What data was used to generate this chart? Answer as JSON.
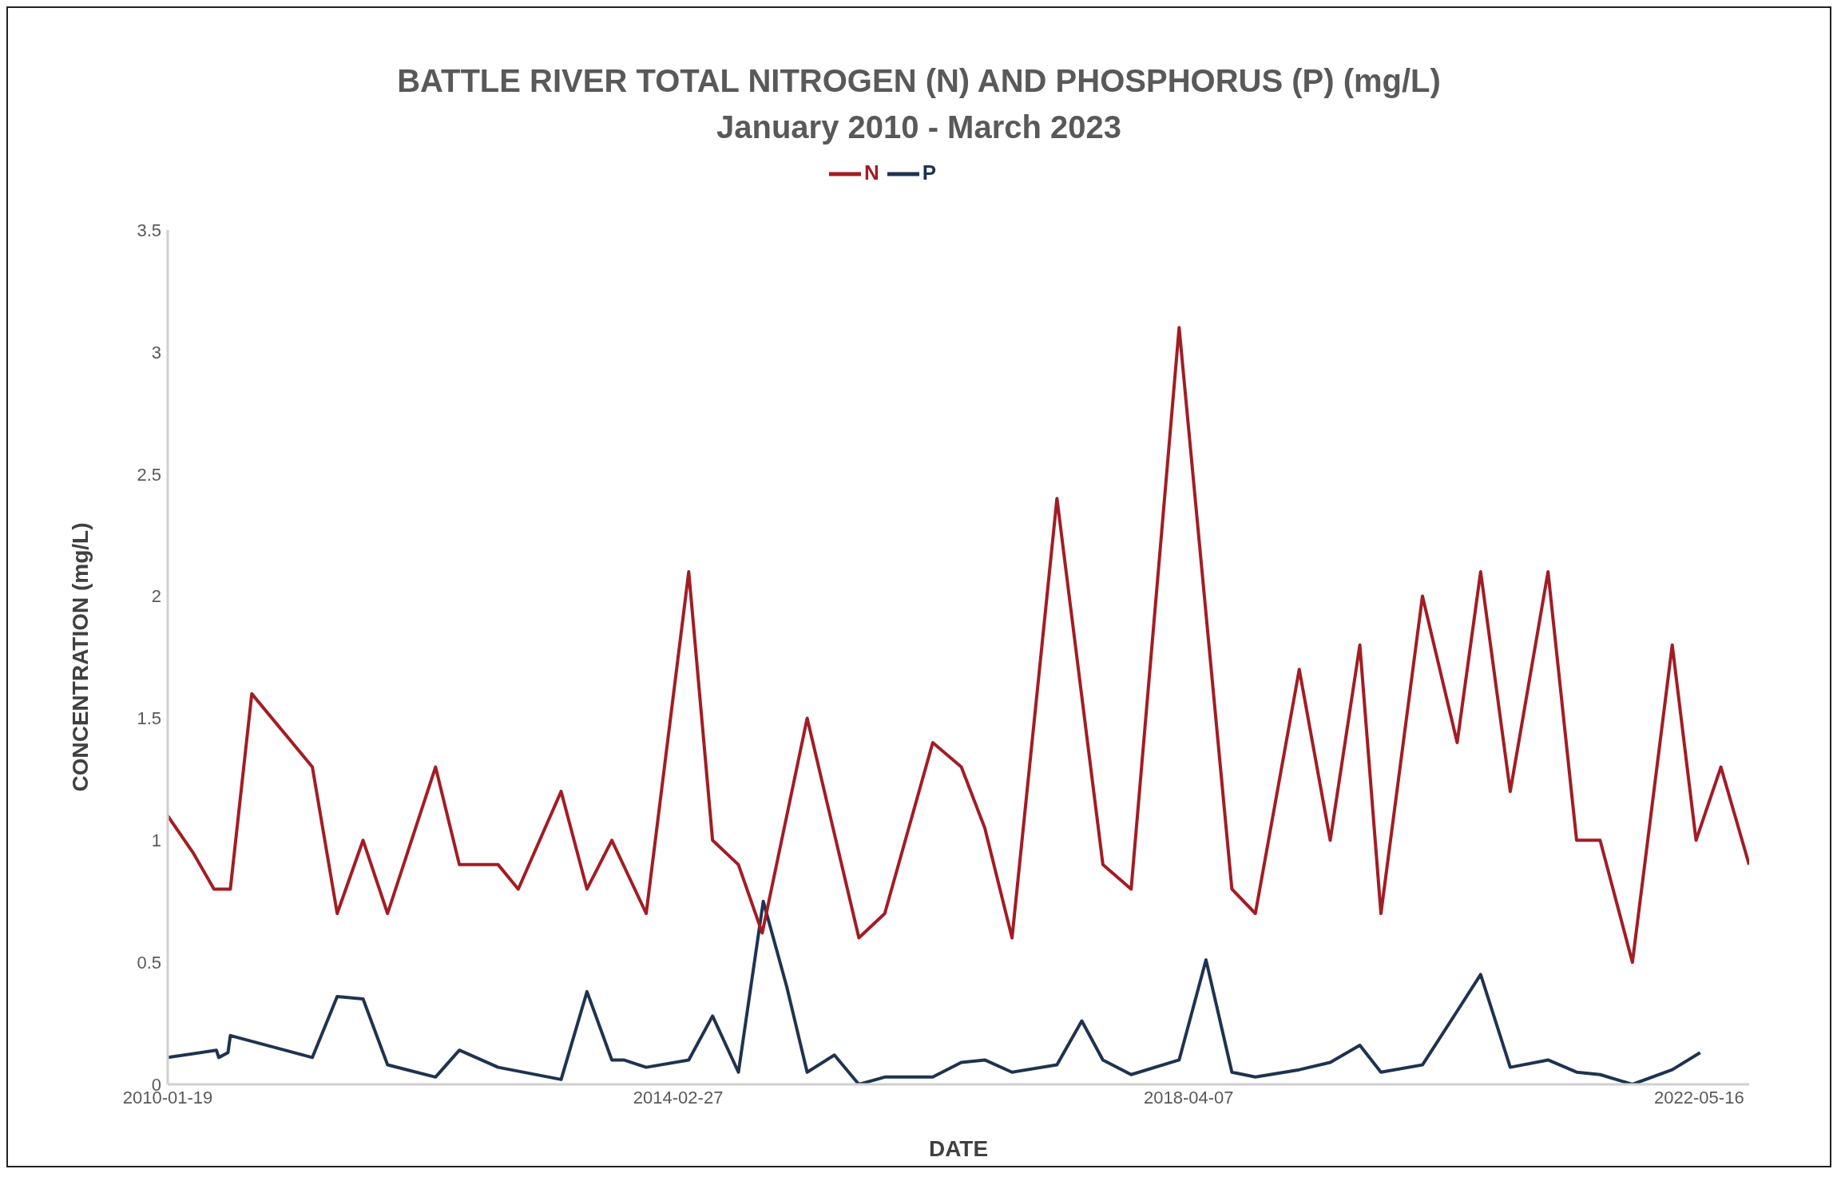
{
  "chart_data": {
    "type": "line",
    "title": "BATTLE RIVER TOTAL NITROGEN (N) AND PHOSPHORUS (P) (mg/L)",
    "subtitle": "January 2010 - March 2023",
    "xlabel": "DATE",
    "ylabel": "CONCENTRATION (mg/L)",
    "legend": "top",
    "xlim": [
      "2010-01-19",
      "2022-10-10"
    ],
    "xticks": [
      "2010-01-19",
      "2014-02-27",
      "2018-04-07",
      "2022-05-16"
    ],
    "ylim": [
      0,
      3.5
    ],
    "yticks": [
      0,
      0.5,
      1,
      1.5,
      2,
      2.5,
      3,
      3.5
    ],
    "series": [
      {
        "name": "P",
        "color": "#1f3350",
        "x": [
          "2010-01-19",
          "2010-06-11",
          "2010-06-18",
          "2010-07-15",
          "2010-07-22",
          "2011-03-20",
          "2011-06-01",
          "2011-08-16",
          "2011-10-27",
          "2012-03-16",
          "2012-05-25",
          "2012-09-16",
          "2013-03-20",
          "2013-06-04",
          "2013-08-16",
          "2013-09-20",
          "2013-11-25",
          "2014-03-30",
          "2014-06-08",
          "2014-08-23",
          "2014-11-04",
          "2015-01-12",
          "2015-03-13",
          "2015-06-01",
          "2015-08-12",
          "2015-10-27",
          "2016-03-16",
          "2016-06-08",
          "2016-08-16",
          "2016-11-04",
          "2017-03-16",
          "2017-05-28",
          "2017-07-29",
          "2017-10-20",
          "2018-03-10",
          "2018-05-28",
          "2018-08-12",
          "2018-10-20",
          "2019-02-26",
          "2019-05-28",
          "2019-08-23",
          "2019-10-24",
          "2020-02-23",
          "2020-06-04",
          "2020-08-12",
          "2020-11-07",
          "2021-02-26",
          "2021-05-21",
          "2021-07-29",
          "2021-11-01",
          "2022-02-26",
          "2022-05-19"
        ],
        "values": [
          0.11,
          0.14,
          0.11,
          0.13,
          0.2,
          0.11,
          0.36,
          0.35,
          0.08,
          0.03,
          0.14,
          0.07,
          0.02,
          0.38,
          0.1,
          0.1,
          0.07,
          0.1,
          0.28,
          0.05,
          0.75,
          0.4,
          0.05,
          0.12,
          0.0,
          0.03,
          0.03,
          0.09,
          0.1,
          0.05,
          0.08,
          0.26,
          0.1,
          0.04,
          0.1,
          0.51,
          0.05,
          0.03,
          0.06,
          0.09,
          0.16,
          0.05,
          0.08,
          0.3,
          0.45,
          0.07,
          0.1,
          0.05,
          0.04,
          0.0,
          0.06,
          0.13
        ]
      },
      {
        "name": "N",
        "color": "#a31c24",
        "x": [
          "2010-01-19",
          "2010-04-03",
          "2010-06-04",
          "2010-07-22",
          "2010-09-23",
          "2011-03-20",
          "2011-06-01",
          "2011-08-16",
          "2011-10-27",
          "2012-03-16",
          "2012-05-25",
          "2012-09-16",
          "2012-11-14",
          "2013-03-20",
          "2013-06-04",
          "2013-08-16",
          "2013-11-25",
          "2014-03-30",
          "2014-06-08",
          "2014-08-23",
          "2014-11-01",
          "2015-03-13",
          "2015-08-12",
          "2015-10-27",
          "2016-03-16",
          "2016-06-08",
          "2016-08-16",
          "2016-11-04",
          "2017-03-16",
          "2017-07-29",
          "2017-10-20",
          "2018-03-10",
          "2018-08-12",
          "2018-10-20",
          "2019-02-26",
          "2019-05-28",
          "2019-08-23",
          "2019-10-24",
          "2020-02-23",
          "2020-06-04",
          "2020-08-12",
          "2020-11-07",
          "2021-02-26",
          "2021-05-21",
          "2021-07-29",
          "2021-11-01",
          "2022-02-26",
          "2022-05-07",
          "2022-07-19",
          "2022-10-10"
        ],
        "values": [
          1.1,
          0.95,
          0.8,
          0.8,
          1.6,
          1.3,
          0.7,
          1.0,
          0.7,
          1.3,
          0.9,
          0.9,
          0.8,
          1.2,
          0.8,
          1.0,
          0.7,
          2.1,
          1.0,
          0.9,
          0.62,
          1.5,
          0.6,
          0.7,
          1.4,
          1.3,
          1.05,
          0.6,
          2.4,
          0.9,
          0.8,
          3.1,
          0.8,
          0.7,
          1.7,
          1.0,
          1.8,
          0.7,
          2.0,
          1.4,
          2.1,
          1.2,
          2.1,
          1.0,
          1.0,
          0.5,
          1.8,
          1.0,
          1.3,
          0.9
        ]
      }
    ]
  }
}
